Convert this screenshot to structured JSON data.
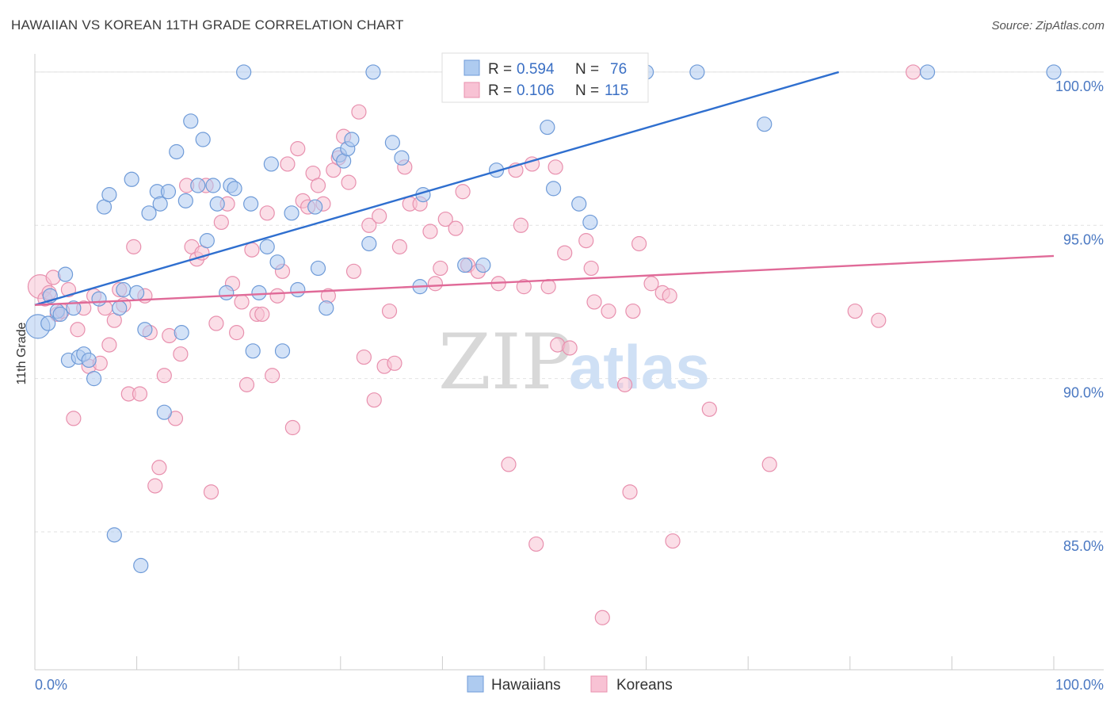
{
  "title": "HAWAIIAN VS KOREAN 11TH GRADE CORRELATION CHART",
  "source": "Source: ZipAtlas.com",
  "watermark": {
    "zip": "ZIP",
    "atlas": "atlas"
  },
  "legend": {
    "rows": [
      {
        "r_label": "R =",
        "r_value": "0.594",
        "n_label": "N =",
        "n_value": "76"
      },
      {
        "r_label": "R =",
        "r_value": "0.106",
        "n_label": "N =",
        "n_value": "115"
      }
    ]
  },
  "bottom_legend": [
    "Hawaiians",
    "Koreans"
  ],
  "colors": {
    "hawaiian_fill": "#aecbf0",
    "hawaiian_stroke": "#6f9bd8",
    "hawaiian_line": "#2f6fcf",
    "korean_fill": "#f8c2d4",
    "korean_stroke": "#e890ae",
    "korean_line": "#e06a98"
  },
  "chart_data": {
    "type": "scatter",
    "title": "HAWAIIAN VS KOREAN 11TH GRADE CORRELATION CHART",
    "xlabel": "",
    "ylabel": "11th Grade",
    "xlim": [
      0,
      100
    ],
    "ylim": [
      80.5,
      100.8
    ],
    "x_tick_labels": [
      "0.0%",
      "100.0%"
    ],
    "y_ticks": [
      85,
      90,
      95,
      100
    ],
    "y_tick_labels": [
      "85.0%",
      "90.0%",
      "95.0%",
      "100.0%"
    ],
    "grid": true,
    "legend_position": "top-center",
    "series": [
      {
        "name": "Hawaiians",
        "trend": {
          "x": [
            0,
            78.9
          ],
          "y": [
            92.4,
            100.0
          ]
        },
        "points": [
          {
            "x": 0.3,
            "y": 91.7,
            "big": true
          },
          {
            "x": 1.3,
            "y": 91.8
          },
          {
            "x": 1.5,
            "y": 92.7
          },
          {
            "x": 2.2,
            "y": 92.2
          },
          {
            "x": 2.5,
            "y": 92.1
          },
          {
            "x": 3.0,
            "y": 93.4
          },
          {
            "x": 3.3,
            "y": 90.6
          },
          {
            "x": 3.8,
            "y": 92.3
          },
          {
            "x": 4.3,
            "y": 90.7
          },
          {
            "x": 4.8,
            "y": 90.8
          },
          {
            "x": 5.3,
            "y": 90.6
          },
          {
            "x": 5.8,
            "y": 90.0
          },
          {
            "x": 6.3,
            "y": 92.6
          },
          {
            "x": 6.8,
            "y": 95.6
          },
          {
            "x": 7.3,
            "y": 96.0
          },
          {
            "x": 7.8,
            "y": 84.9
          },
          {
            "x": 8.3,
            "y": 92.3
          },
          {
            "x": 8.7,
            "y": 92.9
          },
          {
            "x": 9.5,
            "y": 96.5
          },
          {
            "x": 10.0,
            "y": 92.8
          },
          {
            "x": 10.4,
            "y": 83.9
          },
          {
            "x": 10.8,
            "y": 91.6
          },
          {
            "x": 11.2,
            "y": 95.4
          },
          {
            "x": 12.0,
            "y": 96.1
          },
          {
            "x": 12.3,
            "y": 95.7
          },
          {
            "x": 12.7,
            "y": 88.9
          },
          {
            "x": 13.1,
            "y": 96.1
          },
          {
            "x": 13.9,
            "y": 97.4
          },
          {
            "x": 14.4,
            "y": 91.5
          },
          {
            "x": 14.8,
            "y": 95.8
          },
          {
            "x": 15.3,
            "y": 98.4
          },
          {
            "x": 16.0,
            "y": 96.3
          },
          {
            "x": 16.5,
            "y": 97.8
          },
          {
            "x": 16.9,
            "y": 94.5
          },
          {
            "x": 17.5,
            "y": 96.3
          },
          {
            "x": 17.9,
            "y": 95.7
          },
          {
            "x": 18.8,
            "y": 92.8
          },
          {
            "x": 19.2,
            "y": 96.3
          },
          {
            "x": 19.6,
            "y": 96.2
          },
          {
            "x": 20.5,
            "y": 100.0
          },
          {
            "x": 21.2,
            "y": 95.7
          },
          {
            "x": 21.4,
            "y": 90.9
          },
          {
            "x": 22.0,
            "y": 92.8
          },
          {
            "x": 22.8,
            "y": 94.3
          },
          {
            "x": 23.2,
            "y": 97.0
          },
          {
            "x": 23.8,
            "y": 93.8
          },
          {
            "x": 24.3,
            "y": 90.9
          },
          {
            "x": 25.2,
            "y": 95.4
          },
          {
            "x": 25.8,
            "y": 92.9
          },
          {
            "x": 27.5,
            "y": 95.6
          },
          {
            "x": 27.8,
            "y": 93.6
          },
          {
            "x": 28.6,
            "y": 92.3
          },
          {
            "x": 29.9,
            "y": 97.3
          },
          {
            "x": 30.3,
            "y": 97.1
          },
          {
            "x": 30.7,
            "y": 97.5
          },
          {
            "x": 31.1,
            "y": 97.8
          },
          {
            "x": 32.8,
            "y": 94.4
          },
          {
            "x": 33.2,
            "y": 100.0
          },
          {
            "x": 35.1,
            "y": 97.7
          },
          {
            "x": 36.0,
            "y": 97.2
          },
          {
            "x": 37.8,
            "y": 93.0
          },
          {
            "x": 38.1,
            "y": 96.0
          },
          {
            "x": 42.2,
            "y": 93.7
          },
          {
            "x": 44.0,
            "y": 93.7
          },
          {
            "x": 45.3,
            "y": 96.8
          },
          {
            "x": 50.1,
            "y": 100.0
          },
          {
            "x": 50.3,
            "y": 98.2
          },
          {
            "x": 50.9,
            "y": 96.2
          },
          {
            "x": 53.4,
            "y": 95.7
          },
          {
            "x": 54.5,
            "y": 95.1
          },
          {
            "x": 60.0,
            "y": 100.0
          },
          {
            "x": 65.0,
            "y": 100.0
          },
          {
            "x": 71.6,
            "y": 98.3
          },
          {
            "x": 87.6,
            "y": 100.0
          },
          {
            "x": 100.0,
            "y": 100.0
          }
        ]
      },
      {
        "name": "Koreans",
        "trend": {
          "x": [
            0,
            100
          ],
          "y": [
            92.4,
            94.0
          ]
        },
        "points": [
          {
            "x": 0.5,
            "y": 93.0,
            "big": true
          },
          {
            "x": 1.0,
            "y": 92.6
          },
          {
            "x": 1.4,
            "y": 92.8
          },
          {
            "x": 1.8,
            "y": 93.3
          },
          {
            "x": 2.2,
            "y": 92.1
          },
          {
            "x": 2.7,
            "y": 92.2
          },
          {
            "x": 3.3,
            "y": 92.9
          },
          {
            "x": 3.8,
            "y": 88.7
          },
          {
            "x": 4.2,
            "y": 91.6
          },
          {
            "x": 4.8,
            "y": 92.3
          },
          {
            "x": 5.3,
            "y": 90.4
          },
          {
            "x": 5.8,
            "y": 92.7
          },
          {
            "x": 6.4,
            "y": 90.5
          },
          {
            "x": 6.9,
            "y": 92.3
          },
          {
            "x": 7.3,
            "y": 91.1
          },
          {
            "x": 7.8,
            "y": 91.9
          },
          {
            "x": 8.3,
            "y": 92.9
          },
          {
            "x": 8.7,
            "y": 92.4
          },
          {
            "x": 9.2,
            "y": 89.5
          },
          {
            "x": 9.7,
            "y": 94.3
          },
          {
            "x": 10.3,
            "y": 89.5
          },
          {
            "x": 10.8,
            "y": 92.7
          },
          {
            "x": 11.3,
            "y": 91.5
          },
          {
            "x": 11.8,
            "y": 86.5
          },
          {
            "x": 12.2,
            "y": 87.1
          },
          {
            "x": 12.7,
            "y": 90.1
          },
          {
            "x": 13.2,
            "y": 91.4
          },
          {
            "x": 13.8,
            "y": 88.7
          },
          {
            "x": 14.3,
            "y": 90.8
          },
          {
            "x": 14.9,
            "y": 96.3
          },
          {
            "x": 15.4,
            "y": 94.3
          },
          {
            "x": 15.9,
            "y": 93.9
          },
          {
            "x": 16.4,
            "y": 94.1
          },
          {
            "x": 16.8,
            "y": 96.3
          },
          {
            "x": 17.3,
            "y": 86.3
          },
          {
            "x": 17.8,
            "y": 91.8
          },
          {
            "x": 18.3,
            "y": 95.1
          },
          {
            "x": 18.9,
            "y": 95.7
          },
          {
            "x": 19.4,
            "y": 93.1
          },
          {
            "x": 19.8,
            "y": 91.5
          },
          {
            "x": 20.3,
            "y": 92.5
          },
          {
            "x": 20.8,
            "y": 89.8
          },
          {
            "x": 21.3,
            "y": 94.2
          },
          {
            "x": 21.8,
            "y": 92.1
          },
          {
            "x": 22.3,
            "y": 92.1
          },
          {
            "x": 22.8,
            "y": 95.4
          },
          {
            "x": 23.3,
            "y": 90.1
          },
          {
            "x": 23.8,
            "y": 92.7
          },
          {
            "x": 24.3,
            "y": 93.5
          },
          {
            "x": 24.8,
            "y": 97.0
          },
          {
            "x": 25.3,
            "y": 88.4
          },
          {
            "x": 25.8,
            "y": 97.5
          },
          {
            "x": 26.3,
            "y": 95.8
          },
          {
            "x": 26.8,
            "y": 95.6
          },
          {
            "x": 27.3,
            "y": 96.7
          },
          {
            "x": 27.8,
            "y": 96.3
          },
          {
            "x": 28.3,
            "y": 95.7
          },
          {
            "x": 28.8,
            "y": 92.7
          },
          {
            "x": 29.3,
            "y": 96.8
          },
          {
            "x": 29.8,
            "y": 97.2
          },
          {
            "x": 30.3,
            "y": 97.9
          },
          {
            "x": 30.8,
            "y": 96.4
          },
          {
            "x": 31.3,
            "y": 93.5
          },
          {
            "x": 31.8,
            "y": 98.7
          },
          {
            "x": 32.3,
            "y": 90.7
          },
          {
            "x": 32.8,
            "y": 95.0
          },
          {
            "x": 33.3,
            "y": 89.3
          },
          {
            "x": 33.8,
            "y": 95.3
          },
          {
            "x": 34.3,
            "y": 90.4
          },
          {
            "x": 34.8,
            "y": 92.2
          },
          {
            "x": 35.3,
            "y": 90.5
          },
          {
            "x": 35.8,
            "y": 94.3
          },
          {
            "x": 36.3,
            "y": 96.9
          },
          {
            "x": 36.8,
            "y": 95.7
          },
          {
            "x": 37.8,
            "y": 95.7
          },
          {
            "x": 38.8,
            "y": 94.8
          },
          {
            "x": 39.3,
            "y": 93.1
          },
          {
            "x": 39.8,
            "y": 93.6
          },
          {
            "x": 40.3,
            "y": 95.2
          },
          {
            "x": 40.9,
            "y": 100.0
          },
          {
            "x": 41.3,
            "y": 94.9
          },
          {
            "x": 42.0,
            "y": 96.1
          },
          {
            "x": 42.5,
            "y": 93.7
          },
          {
            "x": 43.5,
            "y": 93.5
          },
          {
            "x": 45.5,
            "y": 93.1
          },
          {
            "x": 46.5,
            "y": 87.2
          },
          {
            "x": 47.2,
            "y": 96.8
          },
          {
            "x": 47.7,
            "y": 95.0
          },
          {
            "x": 48.0,
            "y": 93.0
          },
          {
            "x": 48.8,
            "y": 97.0
          },
          {
            "x": 49.2,
            "y": 84.6
          },
          {
            "x": 50.4,
            "y": 93.0
          },
          {
            "x": 51.1,
            "y": 96.9
          },
          {
            "x": 51.3,
            "y": 91.1
          },
          {
            "x": 52.0,
            "y": 94.1
          },
          {
            "x": 52.5,
            "y": 91.0
          },
          {
            "x": 54.1,
            "y": 94.5
          },
          {
            "x": 54.6,
            "y": 93.6
          },
          {
            "x": 54.9,
            "y": 92.5
          },
          {
            "x": 55.7,
            "y": 82.2
          },
          {
            "x": 56.3,
            "y": 92.2
          },
          {
            "x": 57.9,
            "y": 89.8
          },
          {
            "x": 58.4,
            "y": 86.3
          },
          {
            "x": 58.7,
            "y": 92.2
          },
          {
            "x": 59.3,
            "y": 94.4
          },
          {
            "x": 60.5,
            "y": 93.1
          },
          {
            "x": 61.6,
            "y": 92.8
          },
          {
            "x": 62.3,
            "y": 92.7
          },
          {
            "x": 62.6,
            "y": 84.7
          },
          {
            "x": 66.2,
            "y": 89.0
          },
          {
            "x": 72.1,
            "y": 87.2
          },
          {
            "x": 80.5,
            "y": 92.2
          },
          {
            "x": 82.8,
            "y": 91.9
          },
          {
            "x": 86.2,
            "y": 100.0
          }
        ]
      }
    ]
  }
}
